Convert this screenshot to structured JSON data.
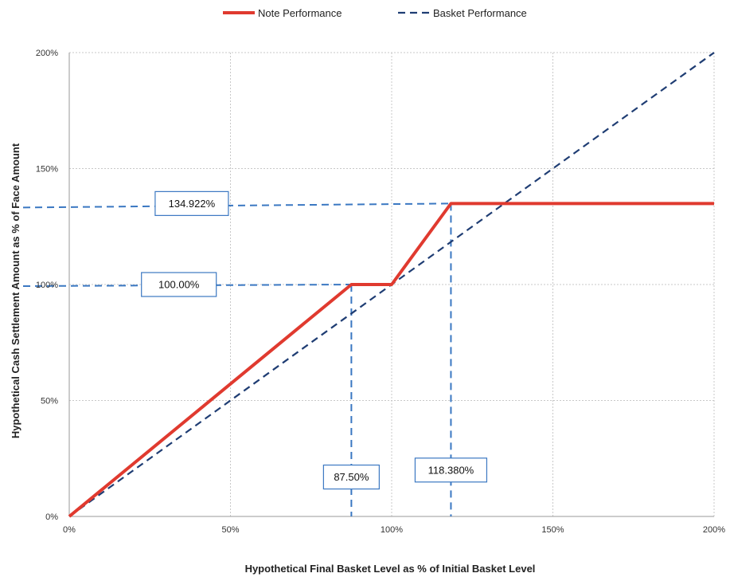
{
  "chart_data": {
    "type": "line",
    "xlabel": "Hypothetical Final Basket Level as % of Initial Basket Level",
    "ylabel": "Hypothetical Cash Settlement Amount as % of Face Amount",
    "xlim": [
      0,
      200
    ],
    "ylim": [
      0,
      200
    ],
    "x_ticks": [
      0,
      50,
      100,
      150,
      200
    ],
    "y_ticks": [
      0,
      50,
      100,
      150,
      200
    ],
    "x_tick_labels": [
      "0%",
      "50%",
      "100%",
      "150%",
      "200%"
    ],
    "y_tick_labels": [
      "0%",
      "50%",
      "100%",
      "150%",
      "200%"
    ],
    "grid": true,
    "legend_position": "top-center",
    "series": [
      {
        "name": "Note Performance",
        "style": "solid",
        "color": "#e03a2f",
        "x": [
          0,
          87.5,
          100,
          118.38,
          200
        ],
        "y": [
          0,
          100,
          100,
          134.922,
          134.922
        ]
      },
      {
        "name": "Basket Performance",
        "style": "dashed",
        "color": "#1f3d73",
        "x": [
          0,
          200
        ],
        "y": [
          0,
          200
        ]
      }
    ],
    "annotations": [
      {
        "text": "134.922%",
        "kind": "horizontal",
        "value": 134.922,
        "box_x": 38,
        "box_y": 134.922
      },
      {
        "text": "100.00%",
        "kind": "horizontal",
        "value": 100,
        "box_x": 34,
        "box_y": 100
      },
      {
        "text": "87.50%",
        "kind": "vertical",
        "value": 87.5,
        "box_x": 87.5,
        "box_y": 17
      },
      {
        "text": "118.380%",
        "kind": "vertical",
        "value": 118.38,
        "box_x": 118.38,
        "box_y": 20
      }
    ],
    "reference_line_color": "#3b78c2"
  }
}
